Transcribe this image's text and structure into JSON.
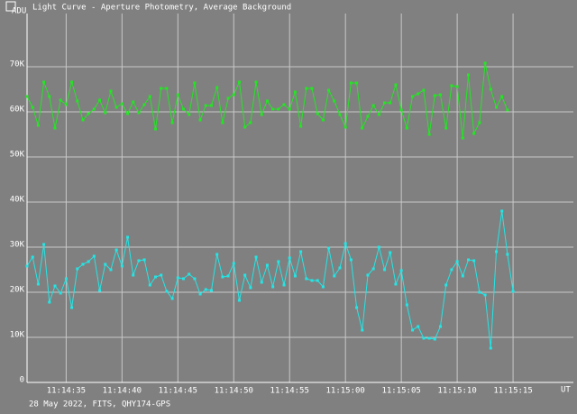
{
  "chart_data": {
    "type": "line",
    "title": "Light Curve - Aperture Photometry, Average Background",
    "y_label": "ADU",
    "x_label": "UT",
    "footer": "28 May 2022, FITS, QHY174-GPS",
    "grid": true,
    "x": [
      40471.5,
      40472,
      40472.5,
      40473,
      40473.5,
      40474,
      40474.5,
      40475,
      40475.5,
      40476,
      40476.5,
      40477,
      40477.5,
      40478,
      40478.5,
      40479,
      40479.5,
      40480,
      40480.5,
      40481,
      40481.5,
      40482,
      40482.5,
      40483,
      40483.5,
      40484,
      40484.5,
      40485,
      40485.5,
      40486,
      40486.5,
      40487,
      40487.5,
      40488,
      40488.5,
      40489,
      40489.5,
      40490,
      40490.5,
      40491,
      40491.5,
      40492,
      40492.5,
      40493,
      40493.5,
      40494,
      40494.5,
      40495,
      40495.5,
      40496,
      40496.5,
      40497,
      40497.5,
      40498,
      40498.5,
      40499,
      40499.5,
      40500,
      40500.5,
      40501,
      40501.5,
      40502,
      40502.5,
      40503,
      40503.5,
      40504,
      40504.5,
      40505,
      40505.5,
      40506,
      40506.5,
      40507,
      40507.5,
      40508,
      40508.5,
      40509,
      40509.5,
      40510,
      40510.5,
      40511,
      40511.5,
      40512,
      40512.5,
      40513,
      40513.5,
      40514,
      40514.5,
      40515
    ],
    "series": [
      {
        "color": "#22e622",
        "values": [
          63400,
          61000,
          57000,
          66600,
          63400,
          56400,
          62600,
          61600,
          66600,
          62400,
          58200,
          59600,
          60600,
          62600,
          59800,
          64600,
          61000,
          61800,
          59600,
          62200,
          59800,
          61600,
          63400,
          56200,
          65200,
          65200,
          57600,
          63800,
          60600,
          59400,
          66400,
          58200,
          61400,
          61400,
          65400,
          57600,
          63000,
          63800,
          66600,
          56600,
          57600,
          66600,
          59400,
          62400,
          60600,
          60600,
          61600,
          60600,
          64400,
          56800,
          65200,
          65200,
          59600,
          58200,
          64800,
          62400,
          59400,
          56600,
          66400,
          66400,
          56400,
          59000,
          61400,
          59400,
          62000,
          62000,
          66000,
          60400,
          56400,
          63400,
          64000,
          64800,
          55000,
          63600,
          63800,
          56400,
          65800,
          65600,
          54200,
          68200,
          55200,
          57600,
          70800,
          65000,
          61000,
          63400,
          60400,
          null
        ]
      },
      {
        "color": "#22e6e6",
        "values": [
          25800,
          27800,
          21800,
          30600,
          17800,
          21400,
          19800,
          23000,
          16600,
          25200,
          26200,
          26800,
          28000,
          20400,
          26200,
          25000,
          29400,
          25800,
          32200,
          23800,
          27000,
          27200,
          21600,
          23400,
          23800,
          20200,
          18600,
          23200,
          23000,
          24000,
          23000,
          19600,
          20600,
          20400,
          28400,
          23400,
          23600,
          26400,
          18200,
          23800,
          21000,
          27800,
          22200,
          26000,
          21200,
          26800,
          21600,
          27600,
          23600,
          29000,
          23000,
          22600,
          22600,
          21200,
          29800,
          23600,
          25400,
          30800,
          27200,
          16600,
          11600,
          23800,
          25200,
          30000,
          25000,
          28800,
          21800,
          24800,
          17200,
          11600,
          12400,
          9800,
          9800,
          9600,
          12400,
          21600,
          25000,
          26800,
          23600,
          27200,
          27000,
          20000,
          19400,
          7600,
          29000,
          38000,
          28400,
          20200
        ]
      }
    ],
    "xlim": [
      40471.5,
      40520.4
    ],
    "ylim": [
      0,
      81800
    ],
    "xticks": [
      {
        "value": 40475,
        "label": "11:14:35"
      },
      {
        "value": 40480,
        "label": "11:14:40"
      },
      {
        "value": 40485,
        "label": "11:14:45"
      },
      {
        "value": 40490,
        "label": "11:14:50"
      },
      {
        "value": 40495,
        "label": "11:14:55"
      },
      {
        "value": 40500,
        "label": "11:15:00"
      },
      {
        "value": 40505,
        "label": "11:15:05"
      },
      {
        "value": 40510,
        "label": "11:15:10"
      },
      {
        "value": 40515,
        "label": "11:15:15"
      }
    ],
    "yticks": [
      0,
      {
        "value": 10000,
        "label": "10K"
      },
      {
        "value": 20000,
        "label": "20K"
      },
      {
        "value": 30000,
        "label": "30K"
      },
      {
        "value": 40000,
        "label": "40K"
      },
      {
        "value": 50000,
        "label": "50K"
      },
      {
        "value": 60000,
        "label": "60K"
      },
      {
        "value": 70000,
        "label": "70K"
      }
    ]
  }
}
